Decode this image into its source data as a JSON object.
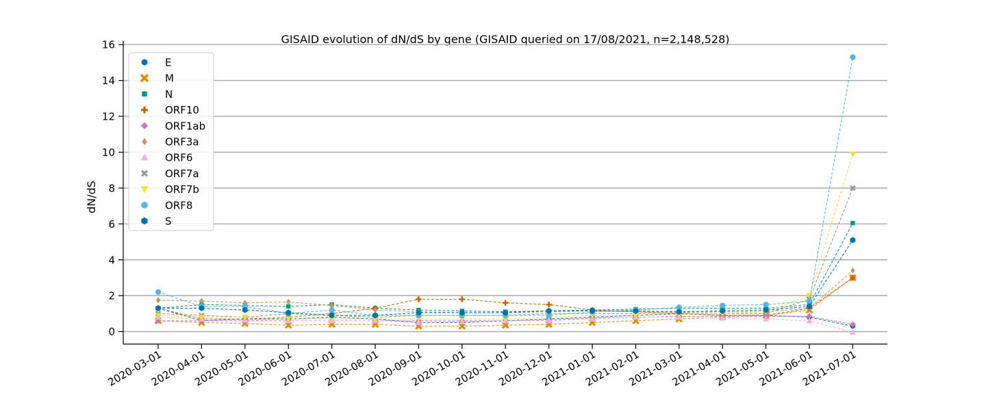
{
  "chart_data": {
    "type": "line",
    "title": "GISAID evolution of dN/dS by gene (GISAID queried on 17/08/2021, n=2,148,528)",
    "xlabel": "",
    "ylabel": "dN/dS",
    "ylim": [
      -0.7,
      16.2
    ],
    "yticks": [
      "0",
      "2",
      "4",
      "6",
      "8",
      "10",
      "12",
      "14",
      "16"
    ],
    "ytick_values": [
      0,
      2,
      4,
      6,
      8,
      10,
      12,
      14,
      16
    ],
    "grid": "horizontal",
    "legend_position": "top-left",
    "x": [
      "2020-03-01",
      "2020-04-01",
      "2020-05-01",
      "2020-06-01",
      "2020-07-01",
      "2020-08-01",
      "2020-09-01",
      "2020-10-01",
      "2020-11-01",
      "2020-12-01",
      "2021-01-01",
      "2021-02-01",
      "2021-03-01",
      "2021-04-01",
      "2021-05-01",
      "2021-06-01",
      "2021-07-01"
    ],
    "series": [
      {
        "name": "E",
        "color": "#0173b2",
        "marker": "circle",
        "values": [
          1.3,
          0.6,
          0.7,
          0.7,
          0.8,
          0.7,
          0.5,
          0.5,
          0.6,
          0.7,
          0.8,
          0.9,
          1.0,
          0.9,
          0.9,
          0.8,
          0.3
        ]
      },
      {
        "name": "M",
        "color": "#de8f05",
        "marker": "x",
        "values": [
          0.6,
          0.5,
          0.45,
          0.35,
          0.4,
          0.4,
          0.3,
          0.3,
          0.35,
          0.4,
          0.5,
          0.6,
          0.7,
          0.8,
          0.9,
          1.2,
          3.0
        ]
      },
      {
        "name": "N",
        "color": "#029e73",
        "marker": "square",
        "values": [
          1.3,
          1.5,
          1.45,
          1.4,
          1.5,
          1.3,
          1.2,
          1.15,
          1.1,
          1.15,
          1.2,
          1.25,
          1.3,
          1.3,
          1.3,
          1.5,
          6.05
        ]
      },
      {
        "name": "ORF10",
        "color": "#d55e00",
        "marker": "plus",
        "values": [
          1.3,
          0.7,
          0.7,
          0.8,
          1.0,
          1.3,
          1.8,
          1.8,
          1.6,
          1.5,
          1.2,
          1.1,
          1.0,
          0.9,
          0.9,
          1.3,
          3.0
        ]
      },
      {
        "name": "ORF1ab",
        "color": "#cc78bc",
        "marker": "diamond",
        "values": [
          0.6,
          0.6,
          0.6,
          0.6,
          0.6,
          0.6,
          0.6,
          0.6,
          0.6,
          0.65,
          0.75,
          0.8,
          0.85,
          0.85,
          0.85,
          0.85,
          0.4
        ]
      },
      {
        "name": "ORF3a",
        "color": "#ca9161",
        "marker": "thin_diamond",
        "values": [
          1.75,
          1.7,
          1.6,
          1.65,
          1.45,
          1.2,
          1.1,
          1.05,
          1.05,
          1.1,
          1.15,
          1.1,
          1.1,
          1.1,
          1.1,
          1.3,
          3.4
        ]
      },
      {
        "name": "ORF6",
        "color": "#fbafe4",
        "marker": "triangle-up",
        "values": [
          0.8,
          0.7,
          0.65,
          0.6,
          0.6,
          0.6,
          0.5,
          0.55,
          0.6,
          0.6,
          0.7,
          0.8,
          0.8,
          0.75,
          0.7,
          0.6,
          -0.05
        ]
      },
      {
        "name": "ORF7a",
        "color": "#949494",
        "marker": "x-thick",
        "values": [
          1.0,
          0.9,
          0.8,
          1.0,
          0.9,
          0.8,
          0.9,
          0.9,
          0.9,
          1.0,
          1.0,
          1.0,
          1.05,
          1.0,
          1.0,
          1.8,
          8.0
        ]
      },
      {
        "name": "ORF7b",
        "color": "#ece133",
        "marker": "triangle-down",
        "values": [
          0.9,
          0.8,
          0.8,
          0.7,
          0.7,
          0.7,
          0.7,
          0.7,
          0.7,
          0.8,
          0.9,
          0.9,
          0.95,
          1.0,
          1.1,
          2.0,
          9.9
        ]
      },
      {
        "name": "ORF8",
        "color": "#56b4e9",
        "marker": "star",
        "values": [
          2.2,
          1.4,
          1.4,
          1.0,
          1.2,
          0.9,
          0.9,
          0.9,
          0.9,
          0.9,
          1.1,
          1.2,
          1.35,
          1.45,
          1.5,
          1.7,
          15.3
        ]
      },
      {
        "name": "S",
        "color": "#0173b2",
        "marker": "hexagon",
        "values": [
          1.3,
          1.3,
          1.2,
          1.05,
          0.9,
          0.9,
          1.05,
          1.05,
          1.05,
          1.15,
          1.15,
          1.15,
          1.1,
          1.15,
          1.2,
          1.4,
          5.1
        ]
      }
    ]
  }
}
